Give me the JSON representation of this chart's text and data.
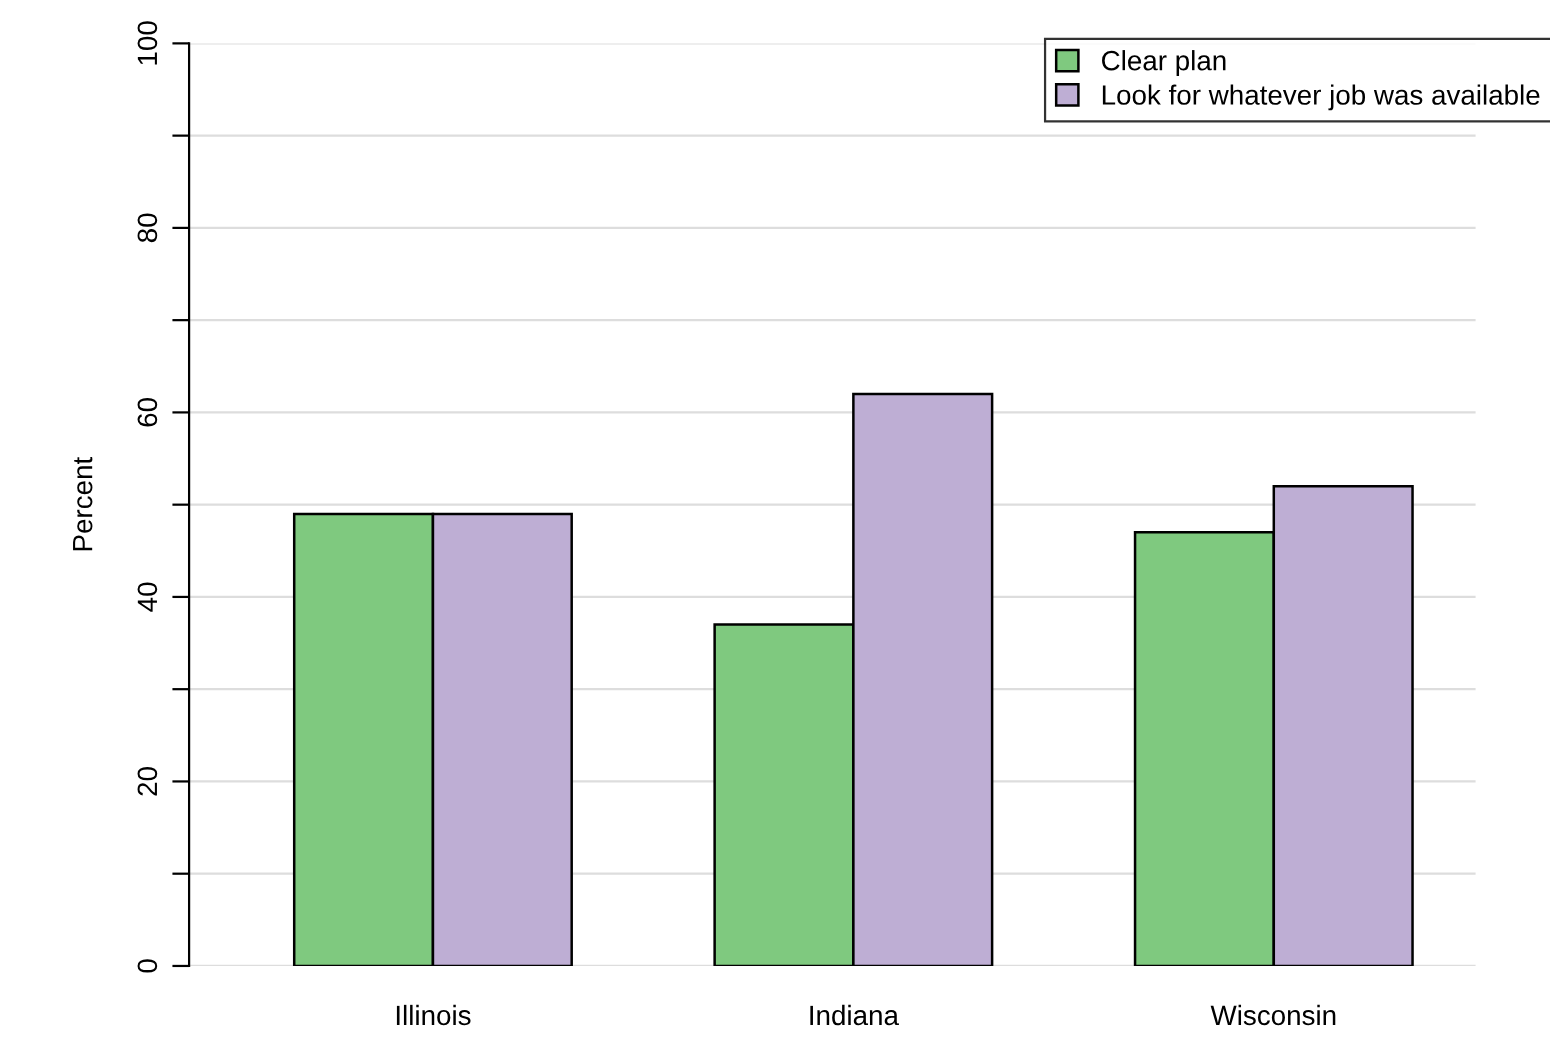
{
  "chart_data": {
    "type": "bar",
    "ylabel": "Percent",
    "categories": [
      "Illinois",
      "Indiana",
      "Wisconsin"
    ],
    "series": [
      {
        "name": "Clear plan",
        "color": "#7fc97f",
        "values": [
          49,
          37,
          47
        ]
      },
      {
        "name": "Look for whatever job was available",
        "color": "#beaed4",
        "values": [
          49,
          62,
          52
        ]
      }
    ],
    "ylim": [
      0,
      100
    ],
    "yticks": [
      0,
      {
        "value": 10,
        "label": null
      },
      20,
      {
        "value": 30,
        "label": null
      },
      40,
      {
        "value": 50,
        "label": null
      },
      60,
      {
        "value": 70,
        "label": null
      },
      80,
      {
        "value": 90,
        "label": null
      },
      100
    ],
    "grid": "y",
    "legend": "top right"
  }
}
